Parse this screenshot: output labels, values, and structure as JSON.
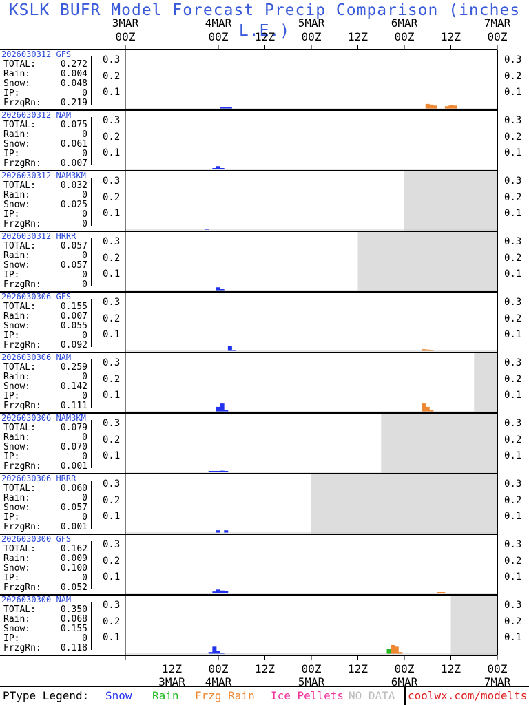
{
  "title": "KSLK BUFR Model Forecast Precip Comparison (inches L.E.)",
  "chart_data": {
    "type": "bar",
    "x_range_hours": [
      0,
      96
    ],
    "x_start": "3MAR 00Z",
    "ylim": [
      0,
      0.35
    ],
    "y_ticks": [
      "0.3",
      "0.2",
      "0.1"
    ],
    "top_axis": [
      {
        "time": "00Z",
        "date": "3MAR",
        "hour": 0
      },
      {
        "time": "00Z",
        "date": "4MAR",
        "hour": 24
      },
      {
        "time": "12Z",
        "hour": 36
      },
      {
        "time": "00Z",
        "date": "5MAR",
        "hour": 48
      },
      {
        "time": "12Z",
        "hour": 60
      },
      {
        "time": "00Z",
        "date": "6MAR",
        "hour": 72
      },
      {
        "time": "12Z",
        "hour": 84
      },
      {
        "time": "00Z",
        "date": "7MAR",
        "hour": 96
      }
    ],
    "bottom_axis": [
      {
        "time": "12Z",
        "date": "3MAR",
        "hour": 12
      },
      {
        "time": "00Z",
        "date": "4MAR",
        "hour": 24
      },
      {
        "time": "12Z",
        "hour": 36
      },
      {
        "time": "00Z",
        "date": "5MAR",
        "hour": 48
      },
      {
        "time": "12Z",
        "hour": 60
      },
      {
        "time": "00Z",
        "date": "6MAR",
        "hour": 72
      },
      {
        "time": "12Z",
        "hour": 84
      },
      {
        "time": "00Z",
        "date": "7MAR",
        "hour": 96
      }
    ],
    "panels": [
      {
        "run": "2026030312 GFS",
        "total": "0.272",
        "rain": "0.004",
        "snow": "0.048",
        "ip": "0",
        "frzg": "0.219",
        "nodata_from": null,
        "bars": [
          {
            "h": 25,
            "v": 0.004,
            "p": "snow"
          },
          {
            "h": 26,
            "v": 0.006,
            "p": "snow"
          },
          {
            "h": 27,
            "v": 0.004,
            "p": "snow"
          },
          {
            "h": 78,
            "v": 0.03,
            "p": "frzg"
          },
          {
            "h": 79,
            "v": 0.026,
            "p": "frzg"
          },
          {
            "h": 80,
            "v": 0.02,
            "p": "frzg"
          },
          {
            "h": 83,
            "v": 0.016,
            "p": "frzg"
          },
          {
            "h": 84,
            "v": 0.024,
            "p": "frzg"
          },
          {
            "h": 85,
            "v": 0.02,
            "p": "frzg"
          }
        ]
      },
      {
        "run": "2026030312 NAM",
        "total": "0.075",
        "rain": "0",
        "snow": "0.061",
        "ip": "0",
        "frzg": "0.007",
        "nodata_from": null,
        "bars": [
          {
            "h": 23,
            "v": 0.008,
            "p": "snow"
          },
          {
            "h": 24,
            "v": 0.02,
            "p": "snow"
          },
          {
            "h": 25,
            "v": 0.004,
            "p": "snow"
          }
        ]
      },
      {
        "run": "2026030312 NAM3KM",
        "total": "0.032",
        "rain": "0",
        "snow": "0.025",
        "ip": "0",
        "frzg": "0",
        "nodata_from": 72,
        "bars": [
          {
            "h": 21,
            "v": 0.004,
            "p": "snow"
          }
        ]
      },
      {
        "run": "2026030312 HRRR",
        "total": "0.057",
        "rain": "0",
        "snow": "0.057",
        "ip": "0",
        "frzg": "0",
        "nodata_from": 60,
        "bars": [
          {
            "h": 24,
            "v": 0.02,
            "p": "snow"
          },
          {
            "h": 25,
            "v": 0.008,
            "p": "snow"
          }
        ]
      },
      {
        "run": "2026030306 GFS",
        "total": "0.155",
        "rain": "0.007",
        "snow": "0.055",
        "ip": "0",
        "frzg": "0.092",
        "nodata_from": null,
        "bars": [
          {
            "h": 27,
            "v": 0.03,
            "p": "snow"
          },
          {
            "h": 28,
            "v": 0.006,
            "p": "snow"
          },
          {
            "h": 77,
            "v": 0.012,
            "p": "frzg"
          },
          {
            "h": 78,
            "v": 0.01,
            "p": "frzg"
          },
          {
            "h": 79,
            "v": 0.006,
            "p": "frzg"
          }
        ]
      },
      {
        "run": "2026030306 NAM",
        "total": "0.259",
        "rain": "0",
        "snow": "0.142",
        "ip": "0",
        "frzg": "0.111",
        "nodata_from": 90,
        "bars": [
          {
            "h": 24,
            "v": 0.03,
            "p": "snow"
          },
          {
            "h": 25,
            "v": 0.05,
            "p": "snow"
          },
          {
            "h": 26,
            "v": 0.01,
            "p": "snow"
          },
          {
            "h": 77,
            "v": 0.05,
            "p": "frzg"
          },
          {
            "h": 78,
            "v": 0.03,
            "p": "frzg"
          },
          {
            "h": 79,
            "v": 0.012,
            "p": "frzg"
          }
        ]
      },
      {
        "run": "2026030306 NAM3KM",
        "total": "0.079",
        "rain": "0",
        "snow": "0.070",
        "ip": "0",
        "frzg": "0.001",
        "nodata_from": 66,
        "bars": [
          {
            "h": 22,
            "v": 0.006,
            "p": "snow"
          },
          {
            "h": 23,
            "v": 0.008,
            "p": "snow"
          },
          {
            "h": 24,
            "v": 0.004,
            "p": "snow"
          },
          {
            "h": 25,
            "v": 0.01,
            "p": "snow"
          },
          {
            "h": 26,
            "v": 0.008,
            "p": "snow"
          }
        ]
      },
      {
        "run": "2026030306 HRRR",
        "total": "0.060",
        "rain": "0",
        "snow": "0.057",
        "ip": "0",
        "frzg": "0.001",
        "nodata_from": 48,
        "bars": [
          {
            "h": 24,
            "v": 0.016,
            "p": "snow"
          },
          {
            "h": 26,
            "v": 0.016,
            "p": "snow"
          }
        ]
      },
      {
        "run": "2026030300 GFS",
        "total": "0.162",
        "rain": "0.009",
        "snow": "0.100",
        "ip": "0",
        "frzg": "0.052",
        "nodata_from": null,
        "bars": [
          {
            "h": 23,
            "v": 0.012,
            "p": "snow"
          },
          {
            "h": 24,
            "v": 0.024,
            "p": "snow"
          },
          {
            "h": 25,
            "v": 0.018,
            "p": "snow"
          },
          {
            "h": 26,
            "v": 0.014,
            "p": "snow"
          },
          {
            "h": 81,
            "v": 0.008,
            "p": "frzg"
          },
          {
            "h": 82,
            "v": 0.006,
            "p": "frzg"
          }
        ]
      },
      {
        "run": "2026030300 NAM",
        "total": "0.350",
        "rain": "0.068",
        "snow": "0.155",
        "ip": "0",
        "frzg": "0.118",
        "nodata_from": 84,
        "bars": [
          {
            "h": 22,
            "v": 0.012,
            "p": "snow"
          },
          {
            "h": 23,
            "v": 0.045,
            "p": "snow"
          },
          {
            "h": 24,
            "v": 0.02,
            "p": "snow"
          },
          {
            "h": 25,
            "v": 0.004,
            "p": "snow"
          },
          {
            "h": 68,
            "v": 0.03,
            "p": "rain"
          },
          {
            "h": 69,
            "v": 0.055,
            "p": "frzg"
          },
          {
            "h": 70,
            "v": 0.045,
            "p": "frzg"
          },
          {
            "h": 71,
            "v": 0.012,
            "p": "frzg"
          }
        ]
      }
    ]
  },
  "stat_labels": {
    "total": "TOTAL:",
    "rain": "Rain:",
    "snow": "Snow:",
    "ip": "IP:",
    "frzg": "FrzgRn:"
  },
  "legend": {
    "label": "PType Legend:",
    "snow": "Snow",
    "rain": "Rain",
    "frzg": "Frzg Rain",
    "ip": "Ice Pellets",
    "nodata": "NO DATA",
    "site": "coolwx.com/modelts"
  },
  "colors": {
    "snow": "#2233ee",
    "rain": "#22bb22",
    "frzg": "#ee8833",
    "ip": "#ee3399",
    "nodata": "#dddddd",
    "title": "#3a5bd9",
    "run": "#2a48d6"
  }
}
